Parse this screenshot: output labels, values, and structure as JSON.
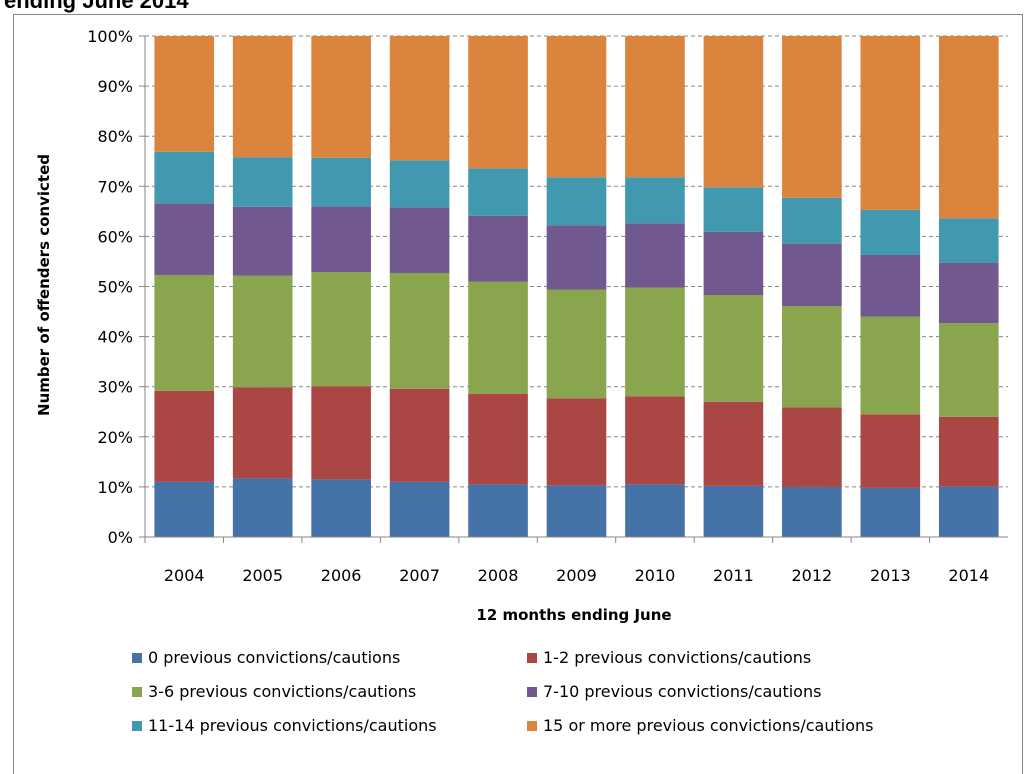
{
  "page_title": "ending June 2014",
  "chart_data": {
    "type": "bar",
    "stacked": true,
    "percent_scale": true,
    "categories": [
      "2004",
      "2005",
      "2006",
      "2007",
      "2008",
      "2009",
      "2010",
      "2011",
      "2012",
      "2013",
      "2014"
    ],
    "xlabel": "12 months ending June",
    "ylabel": "Number of offenders convicted",
    "ylim": [
      0,
      100
    ],
    "yticks": [
      "0%",
      "10%",
      "20%",
      "30%",
      "40%",
      "50%",
      "60%",
      "70%",
      "80%",
      "90%",
      "100%"
    ],
    "grid": true,
    "legend_position": "bottom",
    "series": [
      {
        "name": "0 previous convictions/cautions",
        "color": "#4572A7",
        "values": [
          11,
          11.7,
          11.5,
          11,
          10.5,
          10.3,
          10.5,
          10.2,
          10,
          9.8,
          10.1
        ]
      },
      {
        "name": "1-2 previous convictions/cautions",
        "color": "#AA4643",
        "values": [
          18.2,
          18.2,
          18.6,
          18.6,
          18.1,
          17.4,
          17.6,
          16.8,
          15.9,
          14.7,
          13.9
        ]
      },
      {
        "name": "3-6 previous convictions/cautions",
        "color": "#89A54E",
        "values": [
          23.1,
          22.3,
          22.8,
          23.1,
          22.4,
          21.7,
          21.7,
          21.3,
          20.2,
          19.5,
          18.7
        ]
      },
      {
        "name": "7-10 previous convictions/cautions",
        "color": "#71588F",
        "values": [
          14.3,
          13.7,
          13.1,
          13.1,
          13.1,
          12.8,
          12.8,
          12.6,
          12.4,
          12.3,
          12
        ]
      },
      {
        "name": "11-14 previous convictions/cautions",
        "color": "#4198AF",
        "values": [
          10.3,
          9.9,
          9.7,
          9.4,
          9.5,
          9.6,
          9.2,
          8.9,
          9.2,
          9,
          8.9
        ]
      },
      {
        "name": "15 or more previous convictions/cautions",
        "color": "#DB843D",
        "values": [
          23.1,
          24.2,
          24.3,
          24.8,
          26.4,
          28.2,
          28.2,
          30.2,
          32.3,
          34.7,
          36.4
        ]
      }
    ]
  }
}
